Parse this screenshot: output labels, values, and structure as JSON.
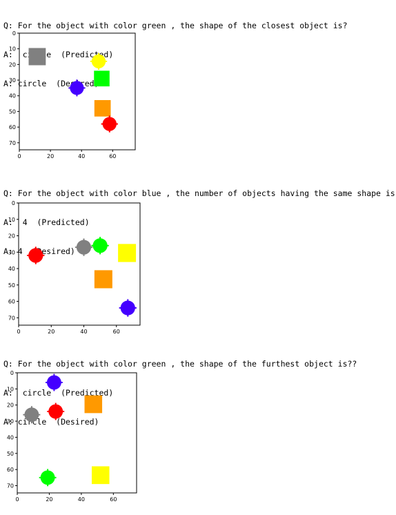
{
  "panels": [
    {
      "question": "Q: For the object with color green , the shape of the closest object is?",
      "predicted": "A:  circle  (Predicted)",
      "desired": "A: circle  (Desired)",
      "chart_data": {
        "type": "scatter",
        "xlim": [
          0,
          74.5
        ],
        "ylim": [
          74.5,
          0
        ],
        "x_ticks": [
          0,
          20,
          40,
          60
        ],
        "y_ticks": [
          0,
          10,
          20,
          30,
          40,
          50,
          60,
          70
        ],
        "objects": [
          {
            "shape": "square",
            "color": "#808080",
            "x": 11.5,
            "y": 15,
            "size": 11
          },
          {
            "shape": "circle",
            "color": "#ffff00",
            "x": 51,
            "y": 18,
            "size": 9
          },
          {
            "shape": "square",
            "color": "#00ff00",
            "x": 53,
            "y": 29,
            "size": 10
          },
          {
            "shape": "circle",
            "color": "#4400ff",
            "x": 37,
            "y": 35,
            "size": 9
          },
          {
            "shape": "square",
            "color": "#ff9900",
            "x": 53.5,
            "y": 48,
            "size": 10.5
          },
          {
            "shape": "circle",
            "color": "#ff0000",
            "x": 58,
            "y": 58,
            "size": 9
          }
        ]
      }
    },
    {
      "question": "Q: For the object with color blue , the number of objects having the same shape is?",
      "predicted": "A:  4  (Predicted)",
      "desired": "A: 4  (Desired)",
      "chart_data": {
        "type": "scatter",
        "xlim": [
          0,
          74.5
        ],
        "ylim": [
          74.5,
          0
        ],
        "x_ticks": [
          0,
          20,
          40,
          60
        ],
        "y_ticks": [
          0,
          10,
          20,
          30,
          40,
          50,
          60,
          70
        ],
        "objects": [
          {
            "shape": "circle",
            "color": "#808080",
            "x": 40,
            "y": 27,
            "size": 9
          },
          {
            "shape": "circle",
            "color": "#00ff00",
            "x": 50,
            "y": 26,
            "size": 9
          },
          {
            "shape": "square",
            "color": "#ffff00",
            "x": 66.5,
            "y": 30.5,
            "size": 11
          },
          {
            "shape": "circle",
            "color": "#ff0000",
            "x": 10.5,
            "y": 32,
            "size": 9
          },
          {
            "shape": "square",
            "color": "#ff9900",
            "x": 52,
            "y": 46.5,
            "size": 11
          },
          {
            "shape": "circle",
            "color": "#4400ff",
            "x": 67,
            "y": 64,
            "size": 9
          }
        ]
      }
    },
    {
      "question": "Q: For the object with color green , the shape of the furthest object is??",
      "predicted": "A:  circle  (Predicted)",
      "desired": "A: circle  (Desired)",
      "chart_data": {
        "type": "scatter",
        "xlim": [
          0,
          74.5
        ],
        "ylim": [
          74.5,
          0
        ],
        "x_ticks": [
          0,
          20,
          40,
          60
        ],
        "y_ticks": [
          0,
          10,
          20,
          30,
          40,
          50,
          60,
          70
        ],
        "objects": [
          {
            "shape": "circle",
            "color": "#4400ff",
            "x": 23,
            "y": 6,
            "size": 9
          },
          {
            "shape": "square",
            "color": "#ff9900",
            "x": 47.5,
            "y": 19.5,
            "size": 11
          },
          {
            "shape": "circle",
            "color": "#ff0000",
            "x": 24,
            "y": 24,
            "size": 9
          },
          {
            "shape": "circle",
            "color": "#808080",
            "x": 9,
            "y": 26,
            "size": 9
          },
          {
            "shape": "circle",
            "color": "#00ff00",
            "x": 19,
            "y": 65,
            "size": 9
          },
          {
            "shape": "square",
            "color": "#ffff00",
            "x": 52,
            "y": 63.5,
            "size": 11
          }
        ]
      }
    }
  ]
}
